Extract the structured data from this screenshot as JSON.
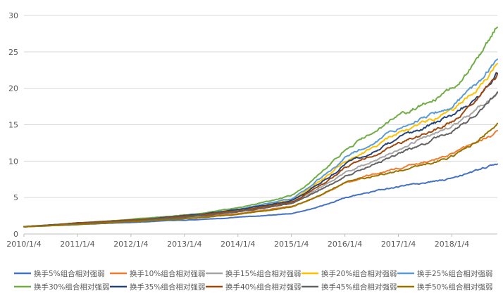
{
  "chart_data": {
    "type": "line",
    "title": "",
    "xlabel": "",
    "ylabel": "",
    "ylim": [
      0,
      30
    ],
    "y_ticks": [
      0,
      5,
      10,
      15,
      20,
      25,
      30
    ],
    "x_tick_labels": [
      "2010/1/4",
      "2011/1/4",
      "2012/1/4",
      "2013/1/4",
      "2014/1/4",
      "2015/1/4",
      "2016/1/4",
      "2017/1/4",
      "2018/1/4"
    ],
    "x_tick_years": [
      2010,
      2011,
      2012,
      2013,
      2014,
      2015,
      2016,
      2017,
      2018
    ],
    "x_range": [
      2010.0,
      2018.85
    ],
    "grid": "horizontal",
    "legend_position": "bottom",
    "series": [
      {
        "name": "换手5%组合相对强弱",
        "color": "#4472C4",
        "x": [
          2010,
          2011,
          2012,
          2013,
          2014,
          2015,
          2015.5,
          2016,
          2016.5,
          2017,
          2017.5,
          2018,
          2018.5,
          2018.85
        ],
        "values": [
          1.0,
          1.3,
          1.6,
          1.9,
          2.3,
          2.8,
          3.7,
          5.0,
          5.8,
          6.5,
          7.0,
          7.6,
          8.8,
          9.6
        ]
      },
      {
        "name": "换手10%组合相对强弱",
        "color": "#ED7D31",
        "x": [
          2010,
          2011,
          2012,
          2013,
          2014,
          2015,
          2015.5,
          2016,
          2016.5,
          2017,
          2017.5,
          2018,
          2018.5,
          2018.85
        ],
        "values": [
          1.0,
          1.4,
          1.8,
          2.2,
          2.8,
          3.8,
          5.2,
          7.0,
          8.1,
          9.0,
          9.9,
          10.9,
          12.6,
          14.0
        ]
      },
      {
        "name": "换手15%组合相对强弱",
        "color": "#A5A5A5",
        "x": [
          2010,
          2011,
          2012,
          2013,
          2014,
          2015,
          2015.5,
          2016,
          2016.5,
          2017,
          2017.5,
          2018,
          2018.5,
          2018.85
        ],
        "values": [
          1.0,
          1.4,
          1.8,
          2.3,
          3.1,
          4.3,
          6.2,
          8.4,
          10.0,
          11.8,
          13.3,
          14.8,
          17.3,
          19.6
        ]
      },
      {
        "name": "换手20%组合相对强弱",
        "color": "#FFC000",
        "x": [
          2010,
          2011,
          2012,
          2013,
          2014,
          2015,
          2015.5,
          2016,
          2016.5,
          2017,
          2017.5,
          2018,
          2018.5,
          2018.85
        ],
        "values": [
          1.0,
          1.5,
          1.9,
          2.4,
          3.3,
          4.7,
          7.1,
          10.0,
          11.9,
          13.9,
          15.4,
          16.9,
          20.1,
          23.5
        ]
      },
      {
        "name": "换手25%组合相对强弱",
        "color": "#5B9BD5",
        "x": [
          2010,
          2011,
          2012,
          2013,
          2014,
          2015,
          2015.5,
          2016,
          2016.5,
          2017,
          2017.5,
          2018,
          2018.5,
          2018.85
        ],
        "values": [
          1.0,
          1.5,
          2.0,
          2.5,
          3.4,
          4.9,
          7.4,
          10.5,
          12.5,
          14.5,
          16.0,
          17.6,
          20.8,
          24.3
        ]
      },
      {
        "name": "换手30%组合相对强弱",
        "color": "#70AD47",
        "x": [
          2010,
          2011,
          2012,
          2013,
          2014,
          2015,
          2015.5,
          2016,
          2016.5,
          2017,
          2017.5,
          2018,
          2018.5,
          2018.85
        ],
        "values": [
          1.0,
          1.5,
          2.0,
          2.6,
          3.6,
          5.3,
          8.1,
          11.6,
          13.9,
          16.2,
          17.9,
          20.0,
          24.0,
          28.8
        ]
      },
      {
        "name": "换手35%组合相对强弱",
        "color": "#264478",
        "x": [
          2010,
          2011,
          2012,
          2013,
          2014,
          2015,
          2015.5,
          2016,
          2016.5,
          2017,
          2017.5,
          2018,
          2018.5,
          2018.85
        ],
        "values": [
          1.0,
          1.5,
          1.9,
          2.5,
          3.3,
          4.6,
          6.8,
          9.6,
          11.3,
          13.1,
          14.6,
          16.2,
          19.0,
          22.0
        ]
      },
      {
        "name": "换手40%组合相对强弱",
        "color": "#9E480E",
        "x": [
          2010,
          2011,
          2012,
          2013,
          2014,
          2015,
          2015.5,
          2016,
          2016.5,
          2017,
          2017.5,
          2018,
          2018.5,
          2018.85
        ],
        "values": [
          1.0,
          1.5,
          1.9,
          2.4,
          3.2,
          4.4,
          6.5,
          9.1,
          10.8,
          12.4,
          13.8,
          15.4,
          18.6,
          21.7
        ]
      },
      {
        "name": "换手45%组合相对强弱",
        "color": "#636363",
        "x": [
          2010,
          2011,
          2012,
          2013,
          2014,
          2015,
          2015.5,
          2016,
          2016.5,
          2017,
          2017.5,
          2018,
          2018.5,
          2018.85
        ],
        "values": [
          1.0,
          1.4,
          1.8,
          2.3,
          3.0,
          4.2,
          5.9,
          8.0,
          9.5,
          11.0,
          12.5,
          14.1,
          16.8,
          19.3
        ]
      },
      {
        "name": "换手50%组合相对强弱",
        "color": "#997300",
        "x": [
          2010,
          2011,
          2012,
          2013,
          2014,
          2015,
          2015.5,
          2016,
          2016.5,
          2017,
          2017.5,
          2018,
          2018.5,
          2018.85
        ],
        "values": [
          1.0,
          1.3,
          1.7,
          2.1,
          2.7,
          3.7,
          5.2,
          7.2,
          7.9,
          8.6,
          9.5,
          10.6,
          12.8,
          15.2
        ]
      }
    ]
  }
}
